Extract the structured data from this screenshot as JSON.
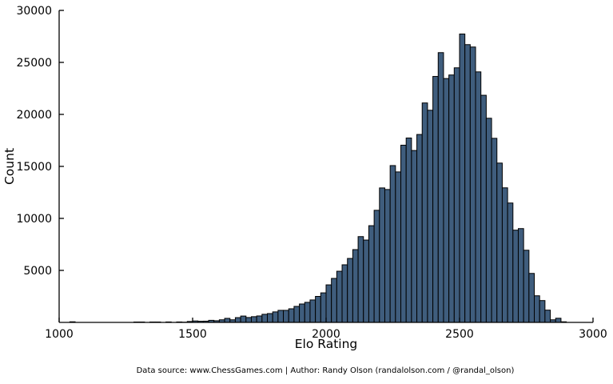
{
  "chart_data": {
    "type": "bar",
    "subtype": "histogram",
    "title": "",
    "xlabel": "Elo Rating",
    "ylabel": "Count",
    "footer": "Data source: www.ChessGames.com | Author: Randy Olson (randalolson.com / @randal_olson)",
    "xlim": [
      1000,
      3000
    ],
    "ylim": [
      0,
      30000
    ],
    "x_ticks": [
      1000,
      1500,
      2000,
      2500,
      3000
    ],
    "y_ticks": [
      5000,
      10000,
      15000,
      20000,
      25000,
      30000
    ],
    "grid": "off",
    "legend": "none",
    "bar_color": "#3F5D7D",
    "bar_edge_color": "#000000",
    "axis_color": "#000000",
    "bin_start": 1000,
    "bin_width": 20,
    "counts": [
      0,
      0,
      60,
      0,
      0,
      0,
      0,
      0,
      0,
      0,
      0,
      0,
      0,
      0,
      40,
      40,
      0,
      40,
      40,
      0,
      45,
      0,
      45,
      20,
      90,
      140,
      110,
      120,
      200,
      160,
      250,
      390,
      250,
      460,
      610,
      470,
      550,
      620,
      780,
      850,
      1010,
      1160,
      1160,
      1310,
      1540,
      1770,
      1930,
      2160,
      2500,
      2840,
      3610,
      4230,
      4920,
      5540,
      6150,
      7000,
      8250,
      7920,
      9300,
      10780,
      12930,
      12780,
      15080,
      14470,
      17040,
      17730,
      16530,
      18070,
      21100,
      20400,
      23650,
      25940,
      23450,
      23790,
      24480,
      27730,
      26710,
      26480,
      24090,
      21840,
      19630,
      17700,
      15320,
      12940,
      11480,
      8870,
      9020,
      6940,
      4710,
      2560,
      2100,
      1180,
      250,
      400,
      60
    ]
  }
}
